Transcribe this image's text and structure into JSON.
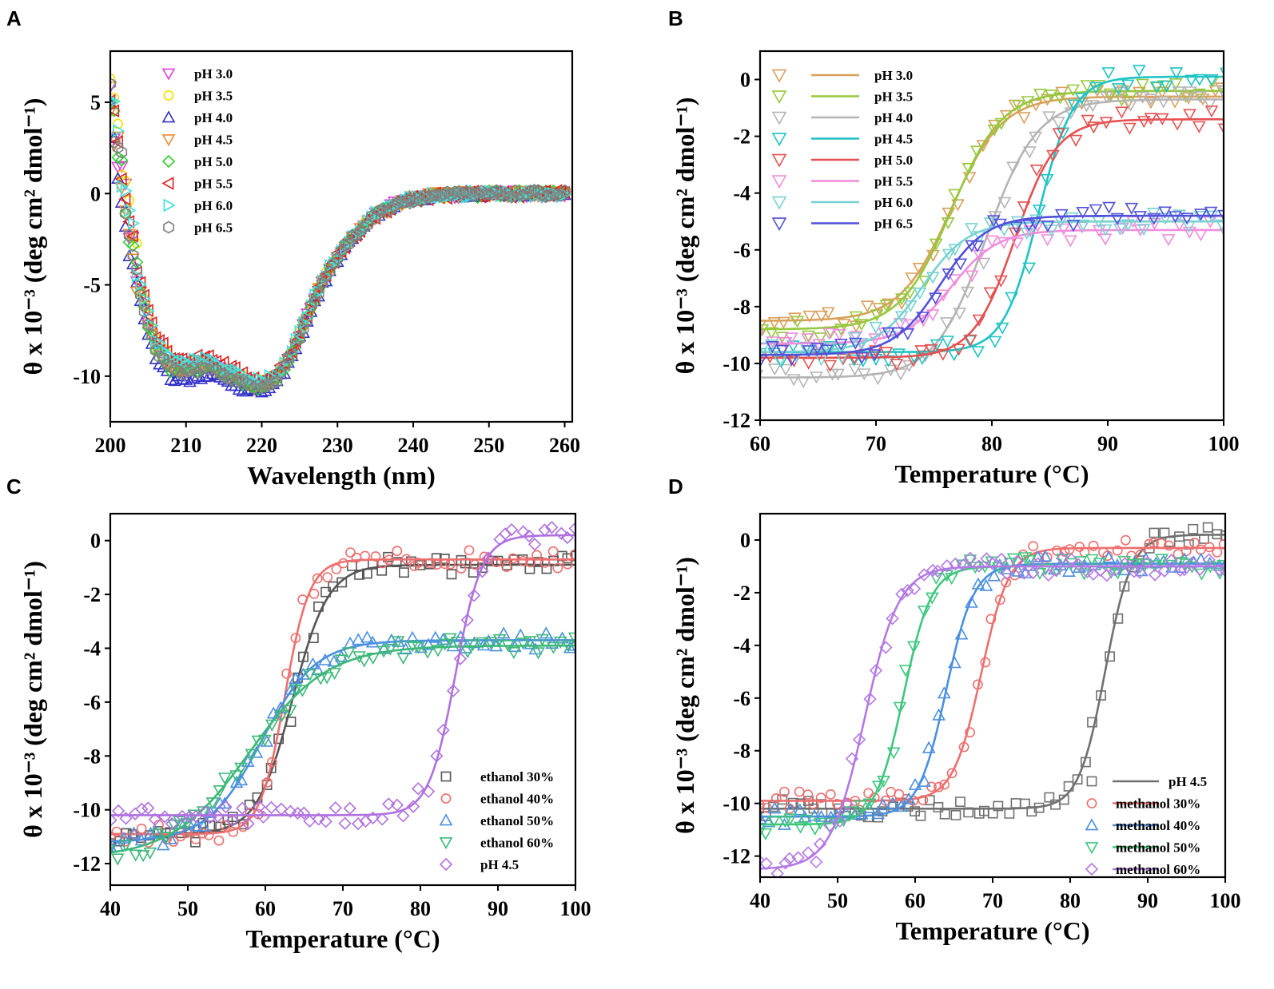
{
  "figure": {
    "panel_labels": [
      "A",
      "B",
      "C",
      "D"
    ],
    "ylabel": "θ x 10⁻³ (deg cm² dmol⁻¹)"
  },
  "chart_data": [
    {
      "type": "scatter",
      "panel": "A",
      "title": "",
      "xlabel": "Wavelength (nm)",
      "ylabel": "θ x 10⁻³ (deg cm² dmol⁻¹)",
      "xlim": [
        200,
        261
      ],
      "ylim": [
        -12.5,
        7.8
      ],
      "xticks": [
        200,
        210,
        220,
        230,
        240,
        250,
        260
      ],
      "yticks": [
        5,
        0,
        -5,
        -10
      ],
      "legend_position": "top-left",
      "series": [
        {
          "name": "pH 3.0",
          "color": "#e040e0",
          "marker": "triangle-down",
          "offset": 0.2
        },
        {
          "name": "pH 3.5",
          "color": "#f0e000",
          "marker": "circle",
          "offset": 0.5
        },
        {
          "name": "pH 4.0",
          "color": "#3030c8",
          "marker": "triangle-up",
          "offset": -0.5
        },
        {
          "name": "pH 4.5",
          "color": "#f08a30",
          "marker": "triangle-down",
          "offset": 0.1
        },
        {
          "name": "pH 5.0",
          "color": "#30d030",
          "marker": "diamond",
          "offset": 0.0
        },
        {
          "name": "pH 5.5",
          "color": "#e02020",
          "marker": "triangle-left",
          "offset": 0.8
        },
        {
          "name": "pH 6.0",
          "color": "#40e0e0",
          "marker": "triangle-right",
          "offset": 0.6
        },
        {
          "name": "pH 6.5",
          "color": "#808080",
          "marker": "hexagon",
          "offset": 0.0
        }
      ],
      "base_curve": {
        "x": [
          200,
          201,
          202,
          203,
          204,
          205,
          206,
          208,
          210,
          212,
          213,
          215,
          217,
          219,
          220,
          222,
          224,
          226,
          228,
          230,
          232,
          235,
          238,
          240,
          243,
          246,
          250,
          255,
          260
        ],
        "y": [
          5,
          2.5,
          -0.5,
          -3.2,
          -5.5,
          -7.2,
          -8.5,
          -9.6,
          -9.8,
          -9.6,
          -9.5,
          -9.9,
          -10.3,
          -10.6,
          -10.6,
          -10.2,
          -8.8,
          -6.8,
          -4.9,
          -3.5,
          -2.4,
          -1.2,
          -0.5,
          -0.3,
          -0.1,
          -0.05,
          -0.02,
          -0.01,
          0
        ]
      }
    },
    {
      "type": "scatter",
      "panel": "B",
      "title": "",
      "xlabel": "Temperature (°C)",
      "ylabel": "θ x 10⁻³ (deg cm² dmol⁻¹)",
      "xlim": [
        60,
        100
      ],
      "ylim": [
        -12,
        1
      ],
      "xticks": [
        60,
        70,
        80,
        90,
        100
      ],
      "yticks": [
        0,
        -2,
        -4,
        -6,
        -8,
        -10,
        -12
      ],
      "legend_position": "top-left",
      "marker": "triangle-down",
      "series": [
        {
          "name": "pH 3.0",
          "color": "#d9a05b",
          "start": -8.5,
          "end": -0.6,
          "tm": 76.5,
          "width": 2.2
        },
        {
          "name": "pH 3.5",
          "color": "#96c83c",
          "start": -8.8,
          "end": -0.4,
          "tm": 76.5,
          "width": 2.2
        },
        {
          "name": "pH 4.0",
          "color": "#b4b4b4",
          "start": -10.5,
          "end": -0.7,
          "tm": 79.5,
          "width": 2.2
        },
        {
          "name": "pH 4.5",
          "color": "#1ec3c3",
          "start": -9.6,
          "end": 0.1,
          "tm": 84.0,
          "width": 1.5
        },
        {
          "name": "pH 5.0",
          "color": "#e65050",
          "start": -9.8,
          "end": -1.4,
          "tm": 82.0,
          "width": 1.8
        },
        {
          "name": "pH 5.5",
          "color": "#f08cdc",
          "start": -9.3,
          "end": -5.3,
          "tm": 76.5,
          "width": 2.0
        },
        {
          "name": "pH 6.0",
          "color": "#78d2d2",
          "start": -9.6,
          "end": -5.0,
          "tm": 74.0,
          "width": 2.0
        },
        {
          "name": "pH 6.5",
          "color": "#5050dc",
          "start": -9.7,
          "end": -4.8,
          "tm": 75.5,
          "width": 2.0
        }
      ]
    },
    {
      "type": "scatter",
      "panel": "C",
      "title": "",
      "xlabel": "Temperature (°C)",
      "ylabel": "θ x 10⁻³ (deg cm² dmol⁻¹)",
      "xlim": [
        40,
        100
      ],
      "ylim": [
        -12.8,
        1
      ],
      "xticks": [
        40,
        50,
        60,
        70,
        80,
        90,
        100
      ],
      "yticks": [
        0,
        -2,
        -4,
        -6,
        -8,
        -10,
        -12
      ],
      "legend_position": "bottom-right",
      "series": [
        {
          "name": "ethanol 30%",
          "color": "#555555",
          "marker": "square",
          "start": -10.9,
          "end": -0.9,
          "tm": 63.5,
          "width": 2.3
        },
        {
          "name": "ethanol 40%",
          "color": "#ef6e6e",
          "marker": "circle",
          "start": -10.9,
          "end": -0.7,
          "tm": 62.5,
          "width": 1.6
        },
        {
          "name": "ethanol 50%",
          "color": "#4a8fe0",
          "marker": "triangle-up",
          "start": -11.2,
          "end": -3.7,
          "tm": 59.5,
          "width": 3.5
        },
        {
          "name": "ethanol 60%",
          "color": "#3cb878",
          "marker": "triangle-down",
          "start": -11.8,
          "end": -3.9,
          "tm": 58.0,
          "width": 5.0
        },
        {
          "name": "pH 4.5",
          "color": "#b070e0",
          "marker": "diamond",
          "start": -10.2,
          "end": 0.2,
          "tm": 84.5,
          "width": 1.7
        }
      ]
    },
    {
      "type": "scatter",
      "panel": "D",
      "title": "",
      "xlabel": "Temperature (°C)",
      "ylabel": "θ x 10⁻³ (deg cm² dmol⁻¹)",
      "xlim": [
        40,
        100
      ],
      "ylim": [
        -12.8,
        1
      ],
      "xticks": [
        40,
        50,
        60,
        70,
        80,
        90,
        100
      ],
      "yticks": [
        0,
        -2,
        -4,
        -6,
        -8,
        -10,
        -12
      ],
      "legend_position": "bottom-right",
      "series": [
        {
          "name": "pH 4.5",
          "color": "#707070",
          "marker": "square",
          "start": -10.2,
          "end": 0.2,
          "tm": 84.5,
          "width": 1.7
        },
        {
          "name": "methanol 30%",
          "color": "#ef6e6e",
          "marker": "circle",
          "start": -9.9,
          "end": -0.3,
          "tm": 68.5,
          "width": 1.8
        },
        {
          "name": "methanol 40%",
          "color": "#4a8fe0",
          "marker": "triangle-up",
          "start": -10.5,
          "end": -0.9,
          "tm": 64.0,
          "width": 1.8
        },
        {
          "name": "methanol 50%",
          "color": "#3cc87c",
          "marker": "triangle-down",
          "start": -10.8,
          "end": -1.0,
          "tm": 58.5,
          "width": 1.8
        },
        {
          "name": "methanol 60%",
          "color": "#b478e6",
          "marker": "diamond",
          "start": -12.5,
          "end": -1.0,
          "tm": 53.5,
          "width": 2.2
        }
      ]
    }
  ]
}
